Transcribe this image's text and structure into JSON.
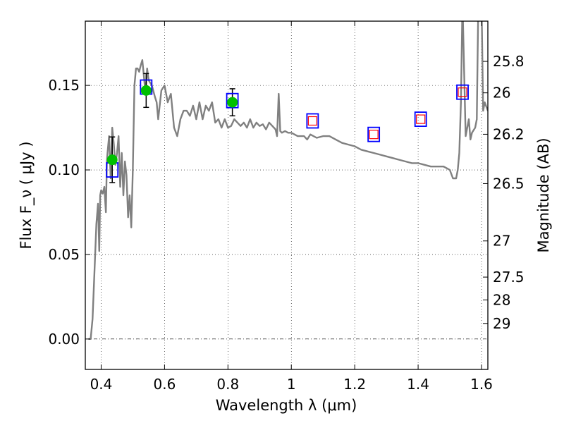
{
  "chart_data": {
    "type": "scatter",
    "xlabel": "Wavelength  λ (μm)",
    "ylabel": "Flux  F_ν  ( μJy )",
    "ylabel_right": "Magnitude (AB)",
    "xlim": [
      0.35,
      1.62
    ],
    "ylim": [
      -0.018,
      0.188
    ],
    "x_ticks": [
      0.4,
      0.6,
      0.8,
      1.0,
      1.2,
      1.4,
      1.6
    ],
    "x_tick_labels": [
      "0.4",
      "0.6",
      "0.8",
      "1",
      "1.2",
      "1.4",
      "1.6"
    ],
    "y_ticks": [
      0.0,
      0.05,
      0.1,
      0.15
    ],
    "y_tick_labels": [
      "0.00",
      "0.05",
      "0.10",
      "0.15"
    ],
    "right_ticks": [
      {
        "label": "25.8",
        "flux": 0.1642
      },
      {
        "label": "26",
        "flux": 0.1456
      },
      {
        "label": "26.2",
        "flux": 0.1211
      },
      {
        "label": "26.5",
        "flux": 0.0919
      },
      {
        "label": "27",
        "flux": 0.058
      },
      {
        "label": "27.5",
        "flux": 0.0366
      },
      {
        "label": "28",
        "flux": 0.0231
      },
      {
        "label": "29",
        "flux": 0.0092
      }
    ],
    "grid": true,
    "zero_line": true,
    "series": [
      {
        "kind": "line",
        "color": "#808080",
        "x": [
          0.36,
          0.367,
          0.373,
          0.38,
          0.385,
          0.39,
          0.394,
          0.397,
          0.4,
          0.405,
          0.41,
          0.415,
          0.418,
          0.42,
          0.425,
          0.43,
          0.435,
          0.44,
          0.445,
          0.45,
          0.455,
          0.46,
          0.465,
          0.47,
          0.475,
          0.48,
          0.485,
          0.49,
          0.495,
          0.5,
          0.505,
          0.51,
          0.515,
          0.52,
          0.525,
          0.53,
          0.535,
          0.54,
          0.545,
          0.55,
          0.56,
          0.57,
          0.575,
          0.58,
          0.59,
          0.6,
          0.61,
          0.62,
          0.63,
          0.64,
          0.65,
          0.66,
          0.67,
          0.68,
          0.69,
          0.7,
          0.71,
          0.72,
          0.73,
          0.74,
          0.75,
          0.76,
          0.77,
          0.78,
          0.79,
          0.8,
          0.81,
          0.82,
          0.83,
          0.84,
          0.85,
          0.86,
          0.87,
          0.88,
          0.89,
          0.9,
          0.91,
          0.92,
          0.93,
          0.94,
          0.95,
          0.955,
          0.96,
          0.965,
          0.97,
          0.98,
          0.99,
          1.0,
          1.02,
          1.04,
          1.05,
          1.06,
          1.08,
          1.1,
          1.12,
          1.14,
          1.16,
          1.18,
          1.2,
          1.22,
          1.24,
          1.26,
          1.28,
          1.3,
          1.32,
          1.34,
          1.36,
          1.38,
          1.4,
          1.42,
          1.44,
          1.46,
          1.48,
          1.5,
          1.51,
          1.52,
          1.525,
          1.53,
          1.535,
          1.54,
          1.55,
          1.56,
          1.565,
          1.57,
          1.58,
          1.585,
          1.59,
          1.6,
          1.605,
          1.61,
          1.62
        ],
        "y": [
          0.0,
          0.0,
          0.012,
          0.045,
          0.068,
          0.08,
          0.052,
          0.085,
          0.088,
          0.086,
          0.09,
          0.075,
          0.105,
          0.11,
          0.12,
          0.095,
          0.125,
          0.115,
          0.103,
          0.11,
          0.12,
          0.09,
          0.11,
          0.085,
          0.105,
          0.097,
          0.072,
          0.085,
          0.066,
          0.1,
          0.15,
          0.16,
          0.16,
          0.158,
          0.162,
          0.165,
          0.155,
          0.145,
          0.16,
          0.153,
          0.15,
          0.143,
          0.14,
          0.13,
          0.147,
          0.15,
          0.14,
          0.145,
          0.125,
          0.12,
          0.13,
          0.135,
          0.135,
          0.132,
          0.138,
          0.13,
          0.14,
          0.13,
          0.138,
          0.135,
          0.14,
          0.128,
          0.13,
          0.125,
          0.13,
          0.125,
          0.126,
          0.13,
          0.128,
          0.126,
          0.128,
          0.125,
          0.13,
          0.125,
          0.128,
          0.126,
          0.127,
          0.124,
          0.128,
          0.126,
          0.124,
          0.12,
          0.145,
          0.123,
          0.122,
          0.123,
          0.122,
          0.122,
          0.12,
          0.12,
          0.118,
          0.121,
          0.119,
          0.12,
          0.12,
          0.118,
          0.116,
          0.115,
          0.114,
          0.112,
          0.111,
          0.11,
          0.109,
          0.108,
          0.107,
          0.106,
          0.105,
          0.104,
          0.104,
          0.103,
          0.102,
          0.102,
          0.102,
          0.1,
          0.095,
          0.095,
          0.1,
          0.11,
          0.14,
          0.2,
          0.12,
          0.13,
          0.118,
          0.122,
          0.125,
          0.13,
          0.2,
          0.2,
          0.135,
          0.14,
          0.135
        ]
      },
      {
        "kind": "model_photometry",
        "marker": "square",
        "color": "#0000ff",
        "x": [
          0.435,
          0.542,
          0.814,
          1.067,
          1.26,
          1.408,
          1.54
        ],
        "y": [
          0.1,
          0.149,
          0.141,
          0.129,
          0.121,
          0.13,
          0.146
        ]
      },
      {
        "kind": "observed_photometry",
        "marker": "circle",
        "color": "#00c000",
        "x": [
          0.435,
          0.542,
          0.814
        ],
        "y": [
          0.106,
          0.147,
          0.14
        ],
        "yerr": [
          0.0135,
          0.01,
          0.008
        ]
      },
      {
        "kind": "upper_limits",
        "marker": "square",
        "color": "#ff0000",
        "x": [
          1.067,
          1.26,
          1.408,
          1.54
        ],
        "y": [
          0.129,
          0.121,
          0.13,
          0.146
        ]
      }
    ]
  }
}
